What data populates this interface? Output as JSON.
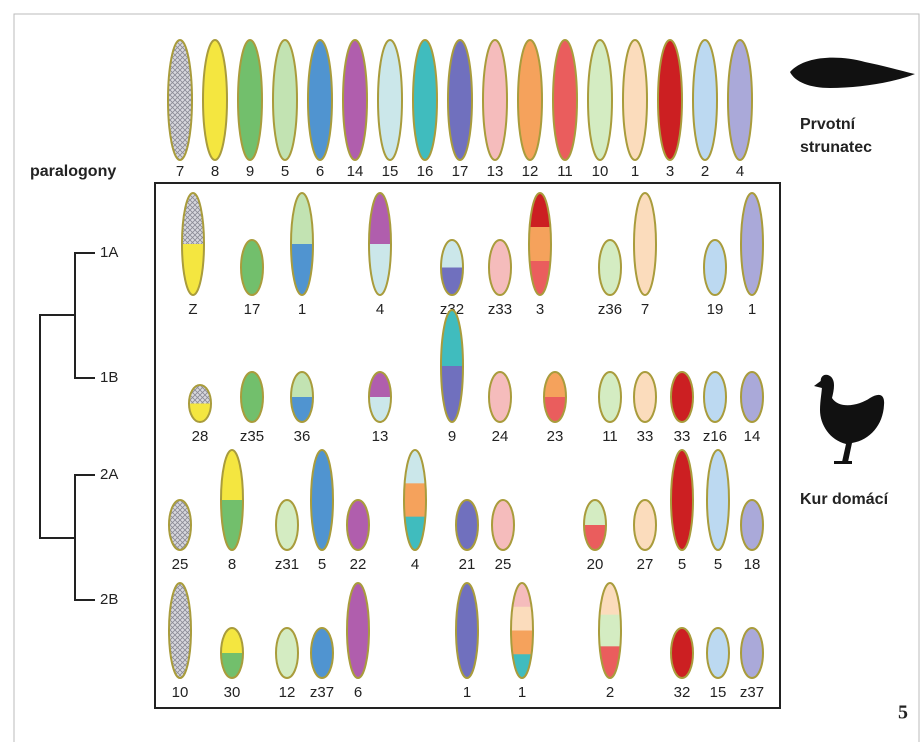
{
  "ancestor_row": {
    "label": "paralogony",
    "chromosomes": [
      "7",
      "8",
      "9",
      "5",
      "6",
      "14",
      "15",
      "16",
      "17",
      "13",
      "12",
      "11",
      "10",
      "1",
      "3",
      "2",
      "4"
    ]
  },
  "species": {
    "ancestor": [
      "Prvotní",
      "strunatec"
    ],
    "chicken": "Kur domácí"
  },
  "groups": [
    {
      "name": "1A",
      "chromosomes": [
        "Z",
        "17",
        "1",
        "4",
        "z32",
        "z33",
        "3",
        "z36",
        "7",
        "19",
        "1"
      ]
    },
    {
      "name": "1B",
      "chromosomes": [
        "28",
        "z35",
        "36",
        "13",
        "9",
        "24",
        "23",
        "11",
        "33",
        "33",
        "z16",
        "14"
      ]
    },
    {
      "name": "2A",
      "chromosomes": [
        "25",
        "8",
        "z31",
        "5",
        "22",
        "4",
        "21",
        "25",
        "20",
        "27",
        "5",
        "5",
        "18"
      ]
    },
    {
      "name": "2B",
      "chromosomes": [
        "10",
        "30",
        "12",
        "z37",
        "6",
        "1",
        "1",
        "2",
        "32",
        "15",
        "z37"
      ]
    }
  ],
  "figure_number": "5"
}
